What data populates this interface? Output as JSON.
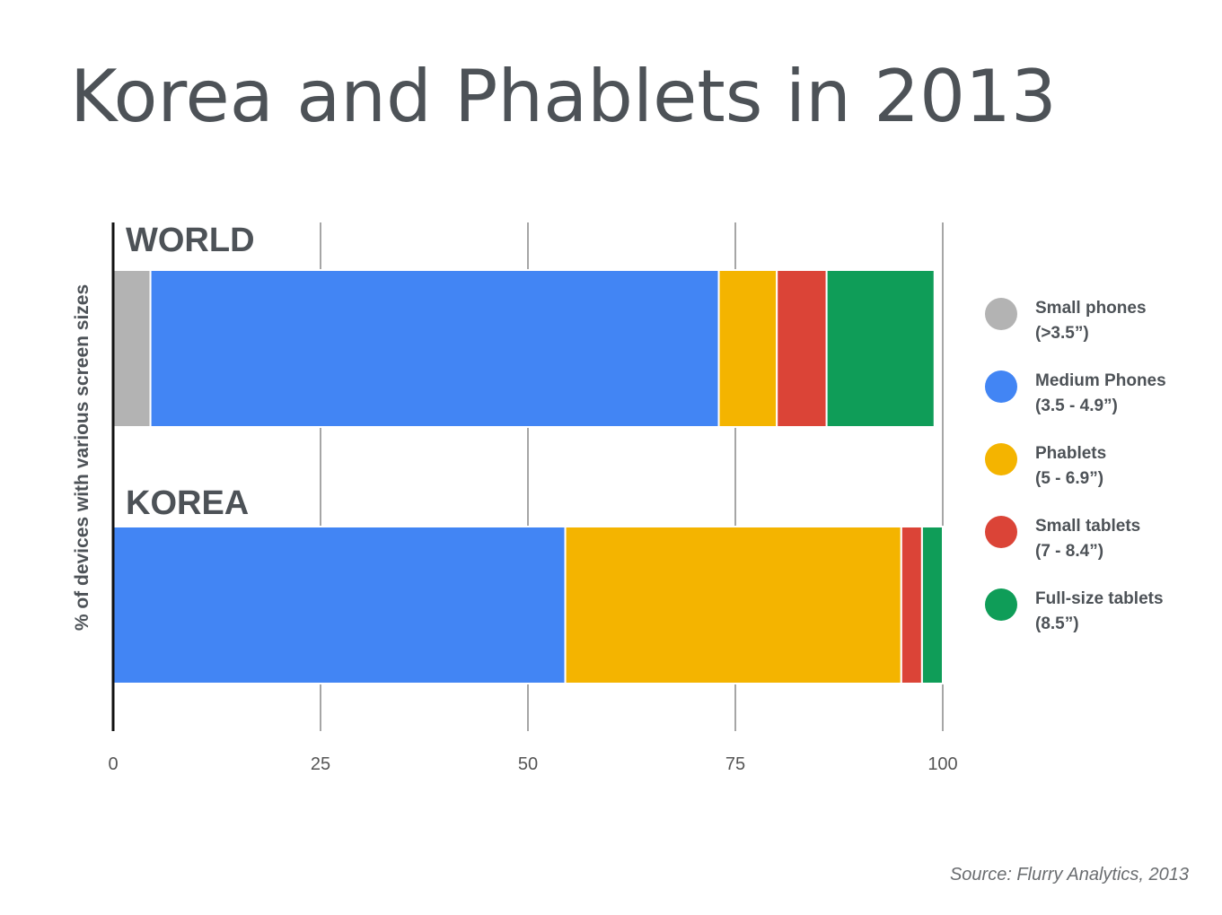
{
  "title": "Korea and Phablets in 2013",
  "source": "Source: Flurry Analytics, 2013",
  "chart_data": {
    "type": "bar",
    "orientation": "horizontal",
    "stacked": true,
    "title": "Korea and Phablets in 2013",
    "xlabel": "",
    "ylabel": "% of devices with various screen sizes",
    "xlim": [
      0,
      100
    ],
    "xticks": [
      0,
      25,
      50,
      75,
      100
    ],
    "grid": true,
    "legend_position": "right",
    "categories": [
      "WORLD",
      "KOREA"
    ],
    "series": [
      {
        "name": "Small phones",
        "sublabel": "(>3.5”)",
        "color": "#b3b3b3",
        "values": [
          4.5,
          0
        ]
      },
      {
        "name": "Medium Phones",
        "sublabel": "(3.5 - 4.9”)",
        "color": "#4285f4",
        "values": [
          68.5,
          54.5
        ]
      },
      {
        "name": "Phablets",
        "sublabel": "(5 - 6.9”)",
        "color": "#f4b400",
        "values": [
          7,
          40.5
        ]
      },
      {
        "name": "Small tablets",
        "sublabel": "(7 - 8.4”)",
        "color": "#db4437",
        "values": [
          6,
          2.5
        ]
      },
      {
        "name": "Full-size tablets",
        "sublabel": "(8.5”)",
        "color": "#0f9d58",
        "values": [
          13,
          2.5
        ]
      }
    ]
  },
  "colors": {
    "text": "#4d5257",
    "grid": "#a6a6a6",
    "axis": "#111111",
    "tick_text": "#555555"
  }
}
